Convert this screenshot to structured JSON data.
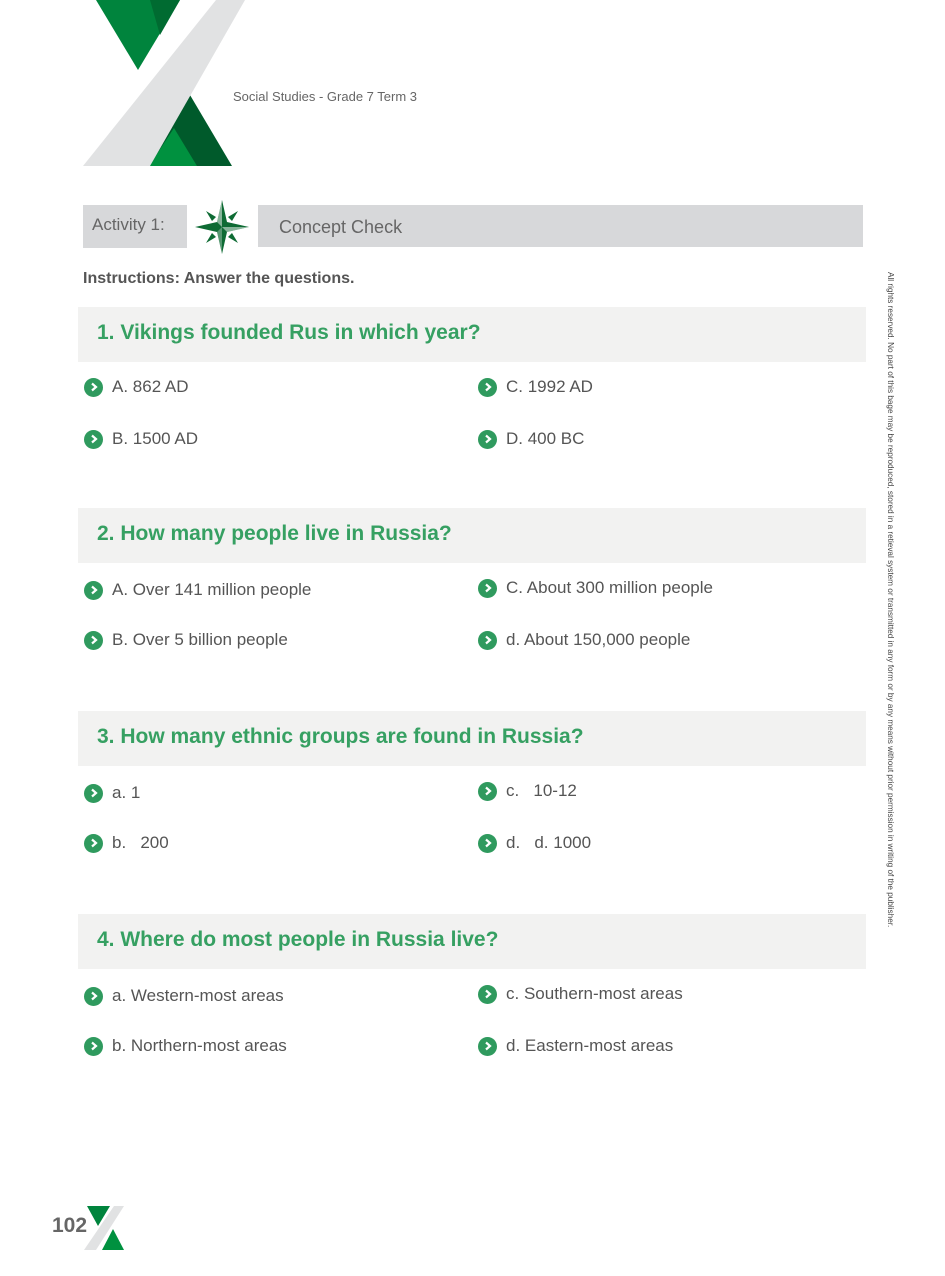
{
  "header": {
    "subtitle": "Social Studies - Grade 7 Term 3"
  },
  "activity": {
    "label": "Activity 1:",
    "title": "Concept Check",
    "icon": "compass-star-icon"
  },
  "instructions": "Instructions: Answer the questions.",
  "questions": [
    {
      "text": "1. Vikings founded Rus in which year?",
      "options": [
        "A. 862 AD",
        "C. 1992 AD",
        "B. 1500 AD",
        "D. 400 BC"
      ]
    },
    {
      "text": "2. How many people live in Russia?",
      "options": [
        "A. Over 141 million people",
        "C. About 300 million people",
        "B. Over 5 billion people",
        "d. About 150,000 people"
      ]
    },
    {
      "text": "3. How many ethnic groups are found in Russia?",
      "options": [
        "a. 1",
        "c.   10-12",
        "b.   200",
        "d.   d. 1000"
      ]
    },
    {
      "text": "4. Where do most people in Russia live?",
      "options": [
        "a. Western-most areas",
        "c. Southern-most areas",
        "b. Northern-most areas",
        "d. Eastern-most areas"
      ]
    }
  ],
  "rights_notice": "All rights reserved. No part of this bage may be reproduced, stored in a retieval system or transmitted in any form or by any means without prior permission in writing of the publisher.",
  "footer": {
    "page_number": "102"
  },
  "colors": {
    "green": "#2f9a5e",
    "dark_green": "#005a2b",
    "gray_band": "#e1e2e3",
    "box_bg": "#f2f2f1"
  }
}
